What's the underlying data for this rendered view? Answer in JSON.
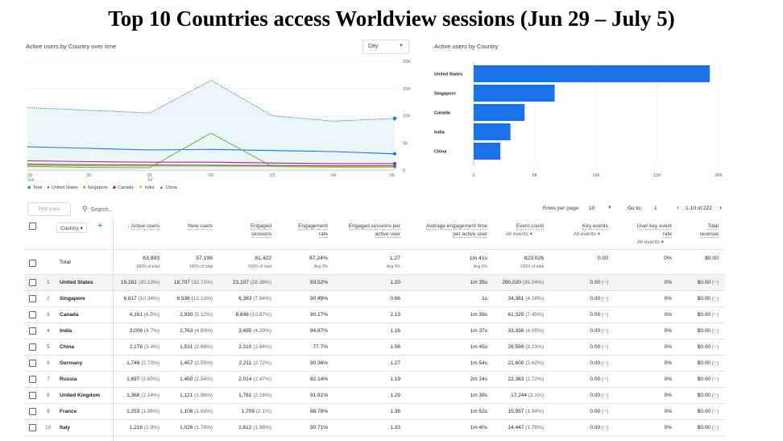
{
  "title": "Top 10 Countries access Worldview sessions (Jun 29 – July 5)",
  "line_card": {
    "title": "Active users by Country over time",
    "granularity": "Day",
    "legend": [
      {
        "label": "Total",
        "color": "#1a8fa8",
        "icon": "diamond"
      },
      {
        "label": "United States",
        "color": "#1a73e8",
        "icon": "circle"
      },
      {
        "label": "Singapore",
        "color": "#7cb342",
        "icon": "square"
      },
      {
        "label": "Canada",
        "color": "#d01884",
        "icon": "diamond"
      },
      {
        "label": "India",
        "color": "#f2a600",
        "icon": "triangle-down"
      },
      {
        "label": "China",
        "color": "#3c6ea8",
        "icon": "triangle-up"
      }
    ]
  },
  "chart_data": [
    {
      "type": "line",
      "title": "Active users by Country over time",
      "x": [
        "29 Jun",
        "30",
        "01 Jul",
        "02",
        "03",
        "04",
        "05"
      ],
      "x_tick_lines": [
        [
          "29",
          "Jun"
        ],
        [
          "30"
        ],
        [
          "01",
          "Jul"
        ],
        [
          "02"
        ],
        [
          "03"
        ],
        [
          "04"
        ],
        [
          "05"
        ]
      ],
      "y_ticks": [
        "0",
        "5K",
        "10K",
        "15K",
        "20K"
      ],
      "ylim": [
        0,
        20000
      ],
      "y_axis_position": "right",
      "series": [
        {
          "name": "Total",
          "color": "#1a8fa8",
          "style": "dotted",
          "fill": "#e3f2fa",
          "values": [
            11500,
            11000,
            10500,
            16500,
            10000,
            9000,
            9500
          ]
        },
        {
          "name": "United States",
          "color": "#1a73e8",
          "style": "solid",
          "values": [
            4300,
            4000,
            3700,
            3800,
            3600,
            3400,
            3000
          ]
        },
        {
          "name": "Singapore",
          "color": "#7cb342",
          "style": "solid",
          "values": [
            700,
            500,
            450,
            6800,
            650,
            550,
            550
          ]
        },
        {
          "name": "Canada",
          "color": "#d01884",
          "style": "solid",
          "values": [
            1700,
            1550,
            1450,
            1450,
            1300,
            1200,
            1200
          ]
        },
        {
          "name": "India",
          "color": "#f2a600",
          "style": "solid",
          "values": [
            900,
            800,
            750,
            750,
            700,
            650,
            600
          ]
        },
        {
          "name": "China",
          "color": "#3c6ea8",
          "style": "solid",
          "values": [
            1100,
            1000,
            950,
            900,
            850,
            800,
            800
          ]
        }
      ]
    },
    {
      "type": "bar",
      "orientation": "horizontal",
      "title": "Active users by Country",
      "categories": [
        "United States",
        "Singapore",
        "Canada",
        "India",
        "China"
      ],
      "values": [
        19281,
        6617,
        4161,
        3006,
        2178
      ],
      "x_ticks": [
        "0",
        "5K",
        "10K",
        "15K",
        "20K"
      ],
      "xlim": [
        0,
        20000
      ],
      "color": "#1a73e8"
    }
  ],
  "toolbar": {
    "plot_rows": "Plot rows",
    "search_placeholder": "Search...",
    "rows_per_page_label": "Rows per page:",
    "rows_per_page": "10",
    "goto_label": "Go to:",
    "goto_value": "1",
    "range": "1-10 of 222"
  },
  "table": {
    "dimension": "Country",
    "headers": [
      {
        "lines": [
          "Active users"
        ],
        "sort": "↓"
      },
      {
        "lines": [
          "New users"
        ]
      },
      {
        "lines": [
          "Engaged",
          "sessions"
        ]
      },
      {
        "lines": [
          "Engagement",
          "rate"
        ]
      },
      {
        "lines": [
          "Engaged sessions per",
          "active user"
        ]
      },
      {
        "lines": [
          "Average engagement time",
          "per active user"
        ]
      },
      {
        "lines": [
          "Event count"
        ],
        "sub": "All events ▾"
      },
      {
        "lines": [
          "Key events"
        ],
        "sub": "All events ▾"
      },
      {
        "lines": [
          "User key event",
          "rate"
        ],
        "sub": "All events ▾"
      },
      {
        "lines": [
          "Total",
          "revenue"
        ]
      }
    ],
    "totals": {
      "label": "Total",
      "values": [
        "63,993",
        "57,196",
        "81,422",
        "87.24%",
        "1.27",
        "1m 41s",
        "823,026",
        "0.00",
        "0%",
        "$0.00"
      ],
      "subs": [
        "100% of total",
        "100% of total",
        "100% of total",
        "Avg 0%",
        "Avg 0%",
        "Avg 0%",
        "100% of total",
        "",
        "",
        ""
      ]
    },
    "rows": [
      {
        "rank": "1",
        "country": "United States",
        "active": "19,281",
        "active_pct": "(30.13%)",
        "new": "18,707",
        "new_pct": "(32.71%)",
        "eng": "23,107",
        "eng_pct": "(28.38%)",
        "rate": "83.52%",
        "per": "1.20",
        "time": "1m 35s",
        "events": "290,020",
        "events_pct": "(35.24%)",
        "key": "0.00",
        "key_pct": "(−)",
        "ukr": "0%",
        "rev": "$0.00",
        "rev_pct": "(−)"
      },
      {
        "rank": "2",
        "country": "Singapore",
        "active": "6,617",
        "active_pct": "(10.34%)",
        "new": "6,936",
        "new_pct": "(12.13%)",
        "eng": "6,383",
        "eng_pct": "(7.84%)",
        "rate": "90.49%",
        "per": "0.96",
        "time": "1s",
        "events": "34,381",
        "events_pct": "(4.18%)",
        "key": "0.00",
        "key_pct": "(−)",
        "ukr": "0%",
        "rev": "$0.00",
        "rev_pct": "(−)"
      },
      {
        "rank": "3",
        "country": "Canada",
        "active": "4,161",
        "active_pct": "(6.5%)",
        "new": "2,930",
        "new_pct": "(5.12%)",
        "eng": "8,848",
        "eng_pct": "(10.87%)",
        "rate": "90.17%",
        "per": "2.13",
        "time": "1m 39s",
        "events": "61,329",
        "events_pct": "(7.45%)",
        "key": "0.00",
        "key_pct": "(−)",
        "ukr": "0%",
        "rev": "$0.00",
        "rev_pct": "(−)"
      },
      {
        "rank": "4",
        "country": "India",
        "active": "3,006",
        "active_pct": "(4.7%)",
        "new": "2,763",
        "new_pct": "(4.83%)",
        "eng": "3,495",
        "eng_pct": "(4.29%)",
        "rate": "94.87%",
        "per": "1.16",
        "time": "1m 37s",
        "events": "33,338",
        "events_pct": "(4.05%)",
        "key": "0.00",
        "key_pct": "(−)",
        "ukr": "0%",
        "rev": "$0.00",
        "rev_pct": "(−)"
      },
      {
        "rank": "5",
        "country": "China",
        "active": "2,178",
        "active_pct": "(3.4%)",
        "new": "1,531",
        "new_pct": "(2.68%)",
        "eng": "2,310",
        "eng_pct": "(2.84%)",
        "rate": "77.7%",
        "per": "1.06",
        "time": "1m 45s",
        "events": "26,599",
        "events_pct": "(3.23%)",
        "key": "0.00",
        "key_pct": "(−)",
        "ukr": "0%",
        "rev": "$0.00",
        "rev_pct": "(−)"
      },
      {
        "rank": "6",
        "country": "Germany",
        "active": "1,746",
        "active_pct": "(2.73%)",
        "new": "1,457",
        "new_pct": "(2.55%)",
        "eng": "2,211",
        "eng_pct": "(2.72%)",
        "rate": "90.36%",
        "per": "1.27",
        "time": "1m 54s",
        "events": "21,600",
        "events_pct": "(2.62%)",
        "key": "0.00",
        "key_pct": "(−)",
        "ukr": "0%",
        "rev": "$0.00",
        "rev_pct": "(−)"
      },
      {
        "rank": "7",
        "country": "Russia",
        "active": "1,697",
        "active_pct": "(2.65%)",
        "new": "1,450",
        "new_pct": "(2.54%)",
        "eng": "2,014",
        "eng_pct": "(2.47%)",
        "rate": "82.14%",
        "per": "1.19",
        "time": "2m 24s",
        "events": "22,363",
        "events_pct": "(2.72%)",
        "key": "0.00",
        "key_pct": "(−)",
        "ukr": "0%",
        "rev": "$0.00",
        "rev_pct": "(−)"
      },
      {
        "rank": "8",
        "country": "United Kingdom",
        "active": "1,368",
        "active_pct": "(2.14%)",
        "new": "1,121",
        "new_pct": "(1.96%)",
        "eng": "1,761",
        "eng_pct": "(2.16%)",
        "rate": "91.81%",
        "per": "1.29",
        "time": "1m 39s",
        "events": "17,244",
        "events_pct": "(2.1%)",
        "key": "0.00",
        "key_pct": "(−)",
        "ukr": "0%",
        "rev": "$0.00",
        "rev_pct": "(−)"
      },
      {
        "rank": "9",
        "country": "France",
        "active": "1,253",
        "active_pct": "(1.96%)",
        "new": "1,106",
        "new_pct": "(1.93%)",
        "eng": "1,709",
        "eng_pct": "(2.1%)",
        "rate": "88.78%",
        "per": "1.36",
        "time": "1m 52s",
        "events": "15,957",
        "events_pct": "(1.94%)",
        "key": "0.00",
        "key_pct": "(−)",
        "ukr": "0%",
        "rev": "$0.00",
        "rev_pct": "(−)"
      },
      {
        "rank": "10",
        "country": "Italy",
        "active": "1,216",
        "active_pct": "(1.9%)",
        "new": "1,026",
        "new_pct": "(1.79%)",
        "eng": "1,612",
        "eng_pct": "(1.98%)",
        "rate": "90.71%",
        "per": "1.33",
        "time": "1m 40s",
        "events": "14,447",
        "events_pct": "(1.76%)",
        "key": "0.00",
        "key_pct": "(−)",
        "ukr": "0%",
        "rev": "$0.00",
        "rev_pct": "(−)"
      }
    ]
  }
}
